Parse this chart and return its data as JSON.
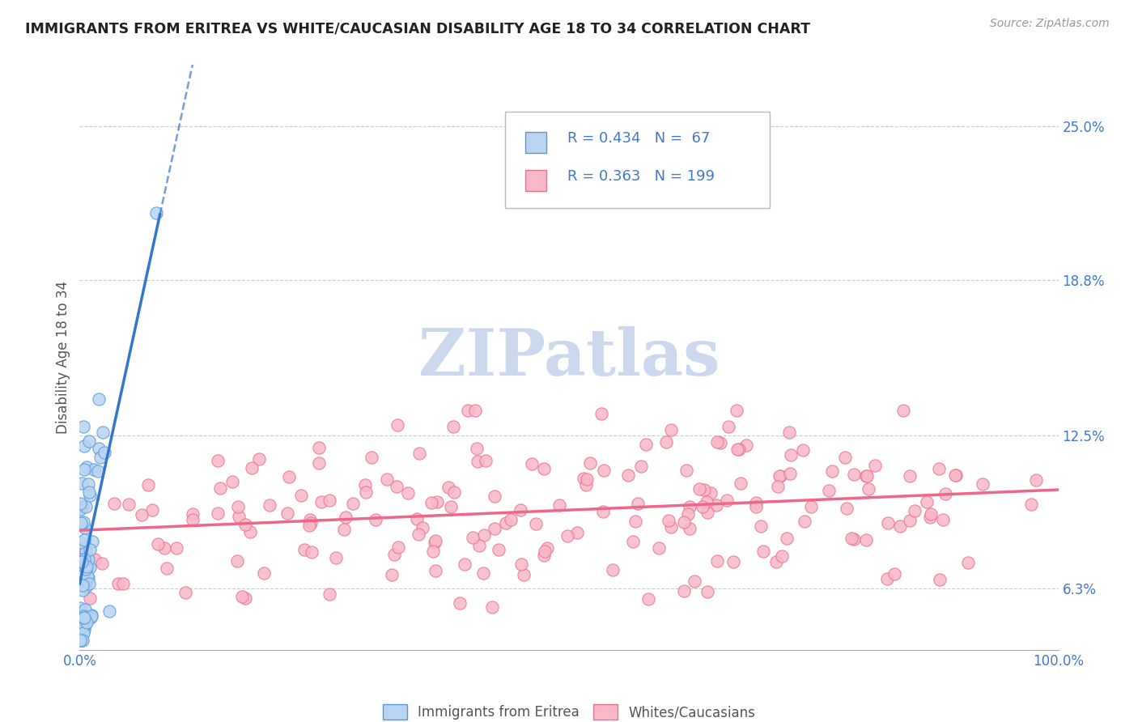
{
  "title": "IMMIGRANTS FROM ERITREA VS WHITE/CAUCASIAN DISABILITY AGE 18 TO 34 CORRELATION CHART",
  "source_text": "Source: ZipAtlas.com",
  "ylabel": "Disability Age 18 to 34",
  "xmin": 0.0,
  "xmax": 1.0,
  "ymin": 0.038,
  "ymax": 0.275,
  "yticks": [
    0.063,
    0.125,
    0.188,
    0.25
  ],
  "ytick_labels": [
    "6.3%",
    "12.5%",
    "18.8%",
    "25.0%"
  ],
  "xticks": [
    0.0,
    0.1,
    0.2,
    0.3,
    0.4,
    0.5,
    0.6,
    0.7,
    0.8,
    0.9,
    1.0
  ],
  "xtick_labels": [
    "0.0%",
    "",
    "",
    "",
    "",
    "",
    "",
    "",
    "",
    "",
    "100.0%"
  ],
  "legend_r1": "R = 0.434",
  "legend_n1": "N =  67",
  "legend_r2": "R = 0.363",
  "legend_n2": "N = 199",
  "color_eritrea_fill": "#b8d4f0",
  "color_eritrea_edge": "#5599dd",
  "color_white_fill": "#f8b8c8",
  "color_white_edge": "#ee7090",
  "color_eritrea_line": "#3377cc",
  "color_white_line": "#ee6688",
  "watermark_color": "#ccd8ee",
  "title_color": "#222222",
  "label_color": "#4477cc",
  "grid_color": "#cccccc",
  "label_text_color": "#555555",
  "source_color": "#999999"
}
